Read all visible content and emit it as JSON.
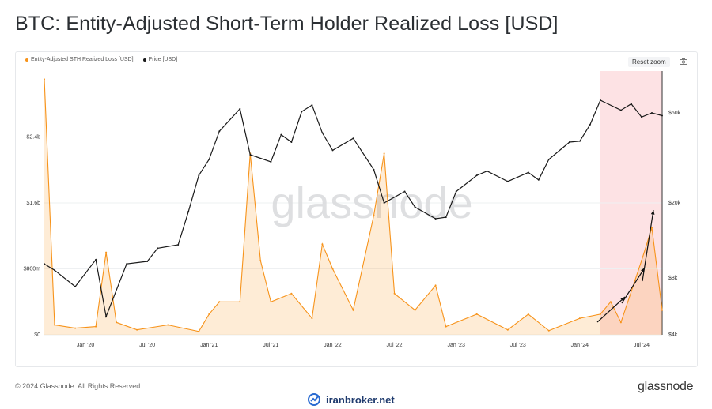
{
  "page": {
    "title": "BTC: Entity-Adjusted Short-Term Holder Realized Loss [USD]",
    "footer_copyright": "© 2024 Glassnode. All Rights Reserved.",
    "footer_brand": "glassnode",
    "site_watermark": "iranbroker.net",
    "chart_watermark": "glassnode"
  },
  "toolbar": {
    "reset_zoom": "Reset zoom",
    "camera_icon": "camera-icon"
  },
  "colors": {
    "loss": "#f7931a",
    "price": "#1a1a1a",
    "highlight": "#fde2e4",
    "axis": "#333333"
  },
  "chart_data": {
    "type": "line",
    "title": "BTC: Entity-Adjusted Short-Term Holder Realized Loss [USD]",
    "x_tick_labels": [
      "Jan '20",
      "Jul '20",
      "Jan '21",
      "Jul '21",
      "Jan '22",
      "Jul '22",
      "Jan '23",
      "Jul '23",
      "Jan '24",
      "Jul '24"
    ],
    "x_range": [
      "2019-09",
      "2024-09"
    ],
    "y_left": {
      "label": "",
      "tick_labels": [
        "$0",
        "$800m",
        "$1.6b",
        "$2.4b"
      ],
      "ticks": [
        0,
        0.8,
        1.6,
        2.4
      ],
      "range": [
        0,
        3.2
      ],
      "units": "USD billions"
    },
    "y_right": {
      "label": "",
      "tick_labels": [
        "$4k",
        "$8k",
        "$20k",
        "$60k"
      ],
      "ticks": [
        4000,
        8000,
        20000,
        60000
      ],
      "scale": "log",
      "range": [
        4000,
        100000
      ]
    },
    "legend_position": "top-left",
    "highlight_range": [
      "2024-03",
      "2024-09"
    ],
    "series": [
      {
        "name": "Entity-Adjusted STH Realized Loss [USD]",
        "axis": "left",
        "color": "#f7931a",
        "points": [
          [
            "2019-09",
            3.1
          ],
          [
            "2019-10",
            0.12
          ],
          [
            "2019-12",
            0.08
          ],
          [
            "2020-02",
            0.1
          ],
          [
            "2020-03",
            1.0
          ],
          [
            "2020-04",
            0.15
          ],
          [
            "2020-06",
            0.06
          ],
          [
            "2020-09",
            0.12
          ],
          [
            "2020-12",
            0.04
          ],
          [
            "2021-01",
            0.25
          ],
          [
            "2021-02",
            0.4
          ],
          [
            "2021-04",
            0.4
          ],
          [
            "2021-05",
            2.2
          ],
          [
            "2021-06",
            0.9
          ],
          [
            "2021-07",
            0.4
          ],
          [
            "2021-09",
            0.5
          ],
          [
            "2021-11",
            0.2
          ],
          [
            "2021-12",
            1.1
          ],
          [
            "2022-01",
            0.8
          ],
          [
            "2022-03",
            0.3
          ],
          [
            "2022-05",
            1.45
          ],
          [
            "2022-06",
            2.2
          ],
          [
            "2022-07",
            0.5
          ],
          [
            "2022-09",
            0.3
          ],
          [
            "2022-11",
            0.6
          ],
          [
            "2022-12",
            0.1
          ],
          [
            "2023-03",
            0.25
          ],
          [
            "2023-06",
            0.06
          ],
          [
            "2023-08",
            0.25
          ],
          [
            "2023-10",
            0.05
          ],
          [
            "2024-01",
            0.2
          ],
          [
            "2024-03",
            0.25
          ],
          [
            "2024-04",
            0.4
          ],
          [
            "2024-05",
            0.15
          ],
          [
            "2024-07",
            0.9
          ],
          [
            "2024-08",
            1.3
          ],
          [
            "2024-09",
            0.3
          ]
        ]
      },
      {
        "name": "Price [USD]",
        "axis": "right",
        "color": "#1a1a1a",
        "points": [
          [
            "2019-09",
            9500
          ],
          [
            "2019-10",
            8800
          ],
          [
            "2019-12",
            7200
          ],
          [
            "2020-01",
            8500
          ],
          [
            "2020-02",
            10000
          ],
          [
            "2020-03",
            5000
          ],
          [
            "2020-05",
            9500
          ],
          [
            "2020-07",
            9800
          ],
          [
            "2020-08",
            11500
          ],
          [
            "2020-10",
            12000
          ],
          [
            "2020-11",
            18000
          ],
          [
            "2020-12",
            28000
          ],
          [
            "2021-01",
            34000
          ],
          [
            "2021-02",
            48000
          ],
          [
            "2021-04",
            63000
          ],
          [
            "2021-05",
            36000
          ],
          [
            "2021-07",
            33000
          ],
          [
            "2021-08",
            46000
          ],
          [
            "2021-09",
            42000
          ],
          [
            "2021-10",
            61000
          ],
          [
            "2021-11",
            66000
          ],
          [
            "2021-12",
            47000
          ],
          [
            "2022-01",
            38000
          ],
          [
            "2022-03",
            44000
          ],
          [
            "2022-05",
            30000
          ],
          [
            "2022-06",
            20000
          ],
          [
            "2022-08",
            23000
          ],
          [
            "2022-09",
            19000
          ],
          [
            "2022-11",
            16500
          ],
          [
            "2022-12",
            16800
          ],
          [
            "2023-01",
            23000
          ],
          [
            "2023-03",
            28000
          ],
          [
            "2023-04",
            29500
          ],
          [
            "2023-06",
            26000
          ],
          [
            "2023-08",
            29000
          ],
          [
            "2023-09",
            26500
          ],
          [
            "2023-10",
            34000
          ],
          [
            "2023-12",
            42000
          ],
          [
            "2024-01",
            42500
          ],
          [
            "2024-02",
            52000
          ],
          [
            "2024-03",
            70000
          ],
          [
            "2024-05",
            62000
          ],
          [
            "2024-06",
            67000
          ],
          [
            "2024-07",
            57000
          ],
          [
            "2024-08",
            60000
          ],
          [
            "2024-09",
            58000
          ]
        ]
      }
    ]
  }
}
